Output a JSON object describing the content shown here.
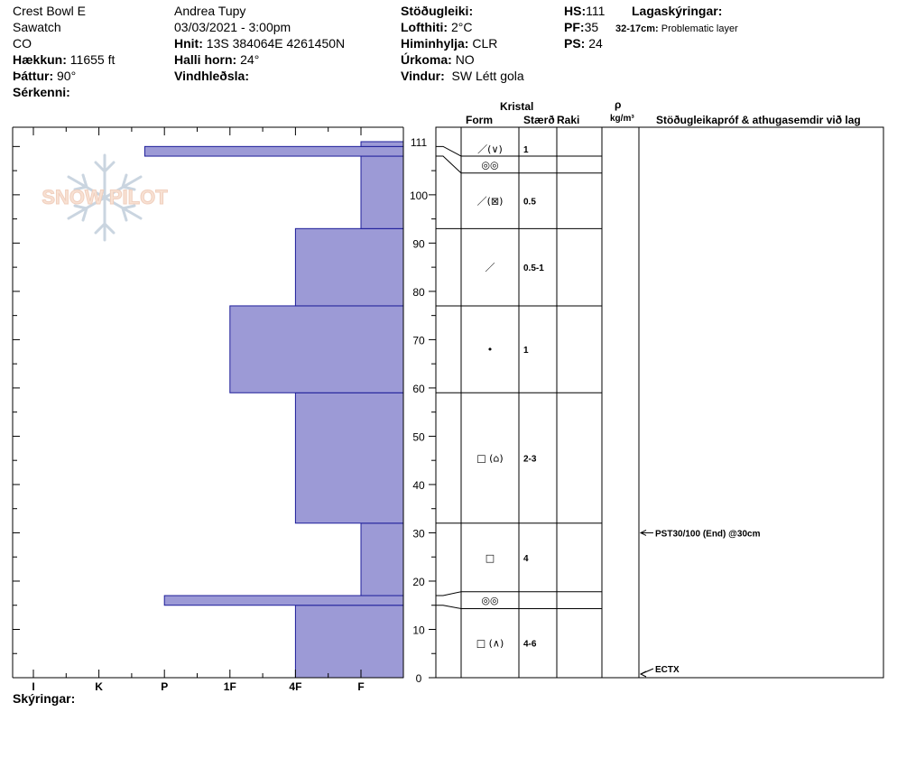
{
  "header": {
    "location": "Crest Bowl E",
    "range": "Sawatch",
    "state": "CO",
    "elevation_label": "Hækkun:",
    "elevation": "11655 ft",
    "aspect_label": "Þáttur:",
    "aspect": "90°",
    "features_label": "Sérkenni:",
    "observer": "Andrea Tupy",
    "datetime": "03/03/2021 - 3:00pm",
    "coords_label": "Hnit:",
    "coords": "13S 384064E 4261450N",
    "slope_label": "Halli horn:",
    "slope": "24°",
    "wind_loading_label": "Vindhleðsla:",
    "stability_label": "Stöðugleiki:",
    "air_temp_label": "Lofthiti:",
    "air_temp": "2°C",
    "sky_label": "Himinhylja:",
    "sky": "CLR",
    "precip_label": "Úrkoma:",
    "precip": "NO",
    "wind_label": "Vindur:",
    "wind": "SW Létt gola",
    "hs_label": "HS:",
    "hs": "111",
    "pf_label": "PF:",
    "pf": "35",
    "ps_label": "PS:",
    "ps": "24",
    "layer_notes_label": "Lagaskýringar:",
    "layer_note_depth": "32-17cm:",
    "layer_note_text": "Problematic layer"
  },
  "legend_label": "Skýringar:",
  "logo_text": "SNOW PILOT",
  "table_headers": {
    "kristal": "Kristal",
    "form": "Form",
    "size": "Stærð",
    "moisture": "Raki",
    "rho": "ρ",
    "density_unit": "kg/m³",
    "tests": "Stöðugleikapróf & athugasemdir við lag"
  },
  "chart_data": {
    "type": "bar",
    "orientation": "horizontal",
    "title": "",
    "xlabel": "",
    "ylabel": "",
    "x_categories": [
      "I",
      "K",
      "P",
      "1F",
      "4F",
      "F"
    ],
    "ylim": [
      0,
      111
    ],
    "y_ticks": [
      0,
      10,
      20,
      30,
      40,
      50,
      60,
      70,
      80,
      90,
      100,
      111
    ],
    "hardness_scale": {
      "I": 0,
      "K": 1,
      "P": 2,
      "1F": 3,
      "4F": 4,
      "F": 5,
      "none": 5.65
    },
    "layers": [
      {
        "bottom": 0,
        "top": 15,
        "hardness": "4F"
      },
      {
        "bottom": 15,
        "top": 17,
        "hardness": "P",
        "hardness_value": 2.0
      },
      {
        "bottom": 17,
        "top": 32,
        "hardness": "F"
      },
      {
        "bottom": 32,
        "top": 59,
        "hardness": "4F"
      },
      {
        "bottom": 59,
        "top": 77,
        "hardness": "1F"
      },
      {
        "bottom": 77,
        "top": 93,
        "hardness": "4F"
      },
      {
        "bottom": 93,
        "top": 108,
        "hardness": "F"
      },
      {
        "bottom": 108,
        "top": 110,
        "hardness": "K-P",
        "hardness_value": 1.7
      },
      {
        "bottom": 110,
        "top": 111,
        "hardness": "F"
      }
    ],
    "bar_color": "#9c9ad6",
    "grid": false
  },
  "crystal_rows": [
    {
      "top": 111,
      "bottom": 108,
      "form": "／(∨)",
      "size": "1"
    },
    {
      "top": 108,
      "bottom": 104.5,
      "form": "◎◎",
      "size": ""
    },
    {
      "top": 104.5,
      "bottom": 93,
      "form": "／(⊠)",
      "size": "0.5"
    },
    {
      "top": 93,
      "bottom": 77,
      "form": "／",
      "size": "0.5-1"
    },
    {
      "top": 77,
      "bottom": 59,
      "form": "•",
      "size": "1"
    },
    {
      "top": 59,
      "bottom": 32,
      "form": "□ (⌂)",
      "size": "2-3"
    },
    {
      "top": 32,
      "bottom": 17.8,
      "form": "□",
      "size": "4"
    },
    {
      "top": 17.8,
      "bottom": 14.3,
      "form": "◎◎",
      "size": ""
    },
    {
      "top": 14.3,
      "bottom": 0,
      "form": "□ (∧)",
      "size": "4-6"
    }
  ],
  "tests": [
    {
      "depth": 30,
      "text": "PST30/100 (End) @30cm"
    },
    {
      "depth": 0,
      "text": "ECTX"
    }
  ]
}
